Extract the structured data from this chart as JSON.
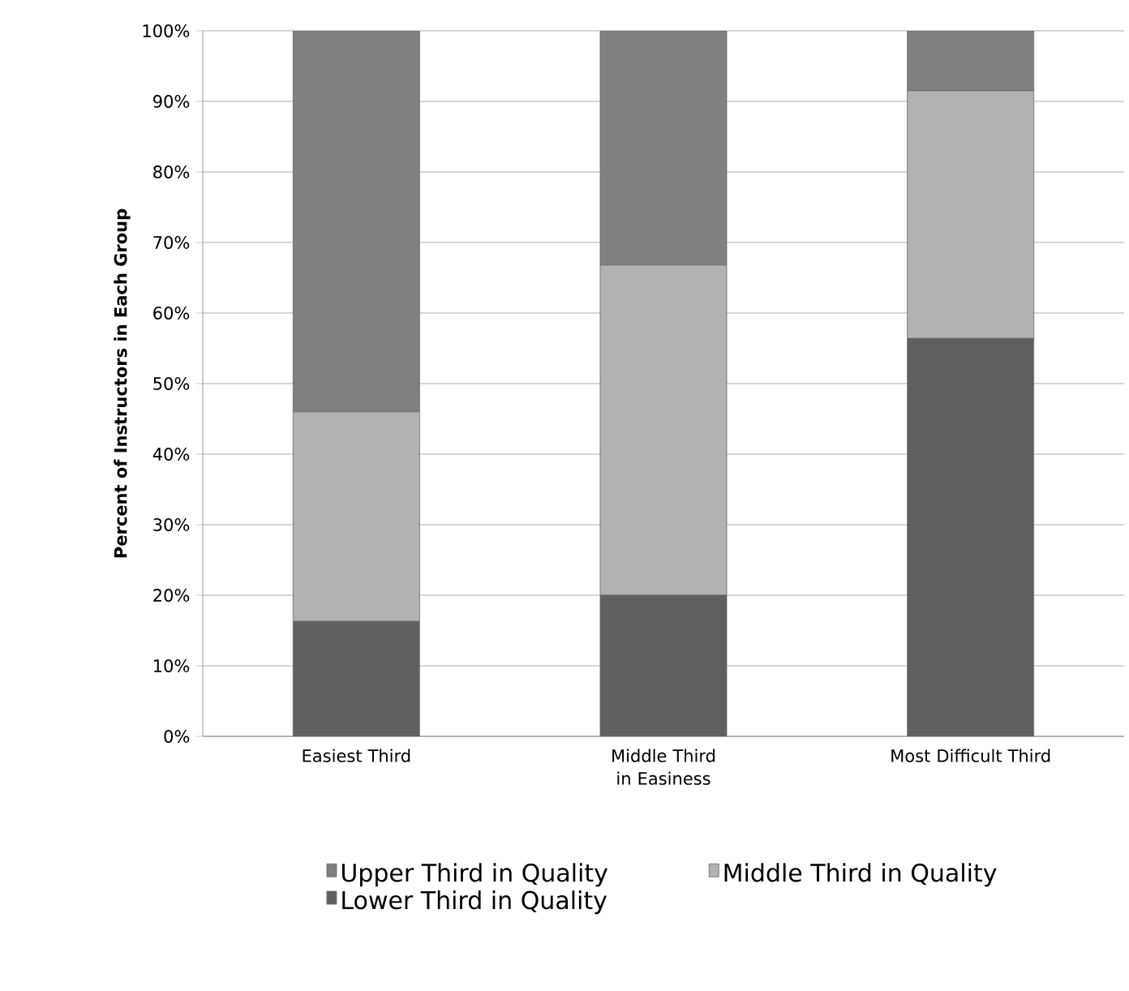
{
  "chart_data": {
    "type": "bar",
    "stacked": true,
    "ylabel": "Percent of Instructors in Each Group",
    "categories": [
      "Easiest Third",
      "Middle Third in Easiness",
      "Most Difficult Third"
    ],
    "series": [
      {
        "name": "Lower Third in Quality",
        "color": "#606060",
        "values": [
          16.3,
          20.0,
          56.4
        ]
      },
      {
        "name": "Middle Third in Quality",
        "color": "#b2b2b2",
        "values": [
          29.7,
          46.8,
          35.1
        ]
      },
      {
        "name": "Upper Third in Quality",
        "color": "#808080",
        "values": [
          54.0,
          33.2,
          8.5
        ]
      }
    ],
    "ylim": [
      0,
      100
    ],
    "yticks": [
      {
        "value": 0,
        "label": "0%"
      },
      {
        "value": 10,
        "label": "10%"
      },
      {
        "value": 20,
        "label": "20%"
      },
      {
        "value": 30,
        "label": "30%"
      },
      {
        "value": 40,
        "label": "40%"
      },
      {
        "value": 50,
        "label": "50%"
      },
      {
        "value": 60,
        "label": "60%"
      },
      {
        "value": 70,
        "label": "70%"
      },
      {
        "value": 80,
        "label": "80%"
      },
      {
        "value": 90,
        "label": "90%"
      },
      {
        "value": 100,
        "label": "100%"
      }
    ],
    "grid": "y",
    "legend": "bottom"
  }
}
